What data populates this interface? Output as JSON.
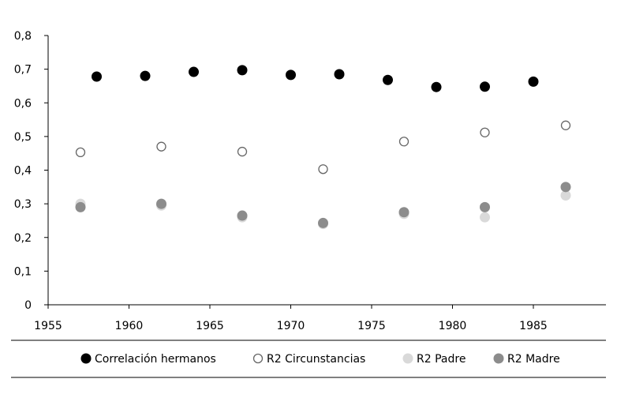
{
  "chart_data": {
    "type": "scatter",
    "title": "",
    "xlabel": "",
    "ylabel": "",
    "xlim": [
      1955,
      1990
    ],
    "ylim": [
      0,
      0.8
    ],
    "x_ticks": [
      "1955",
      "1960",
      "1965",
      "1970",
      "1975",
      "1980",
      "1985"
    ],
    "y_ticks": [
      "0",
      "0,1",
      "0,2",
      "0,3",
      "0,4",
      "0,5",
      "0,6",
      "0,7",
      "0,8"
    ],
    "grid": false,
    "legend_position": "bottom",
    "series": [
      {
        "name": "R2 Padre",
        "style": "filled",
        "color": "#d9d9d9",
        "points": [
          {
            "x": 1957,
            "y": 0.3
          },
          {
            "x": 1962,
            "y": 0.295
          },
          {
            "x": 1967,
            "y": 0.26
          },
          {
            "x": 1972,
            "y": 0.24
          },
          {
            "x": 1977,
            "y": 0.27
          },
          {
            "x": 1982,
            "y": 0.26
          },
          {
            "x": 1987,
            "y": 0.325
          }
        ]
      },
      {
        "name": "R2 Madre",
        "style": "filled",
        "color": "#8c8c8c",
        "points": [
          {
            "x": 1957,
            "y": 0.29
          },
          {
            "x": 1962,
            "y": 0.3
          },
          {
            "x": 1967,
            "y": 0.265
          },
          {
            "x": 1972,
            "y": 0.243
          },
          {
            "x": 1977,
            "y": 0.275
          },
          {
            "x": 1982,
            "y": 0.29
          },
          {
            "x": 1987,
            "y": 0.35
          }
        ]
      },
      {
        "name": "R2 Circunstancias",
        "style": "hollow",
        "color": "#666666",
        "points": [
          {
            "x": 1957,
            "y": 0.453
          },
          {
            "x": 1962,
            "y": 0.47
          },
          {
            "x": 1967,
            "y": 0.455
          },
          {
            "x": 1972,
            "y": 0.403
          },
          {
            "x": 1977,
            "y": 0.485
          },
          {
            "x": 1982,
            "y": 0.512
          },
          {
            "x": 1987,
            "y": 0.533
          }
        ]
      },
      {
        "name": "Correlación hermanos",
        "style": "filled",
        "color": "#000000",
        "points": [
          {
            "x": 1958,
            "y": 0.678
          },
          {
            "x": 1961,
            "y": 0.68
          },
          {
            "x": 1964,
            "y": 0.692
          },
          {
            "x": 1967,
            "y": 0.697
          },
          {
            "x": 1970,
            "y": 0.683
          },
          {
            "x": 1973,
            "y": 0.685
          },
          {
            "x": 1976,
            "y": 0.668
          },
          {
            "x": 1979,
            "y": 0.647
          },
          {
            "x": 1982,
            "y": 0.648
          },
          {
            "x": 1985,
            "y": 0.663
          }
        ]
      }
    ]
  },
  "legend": {
    "items": [
      {
        "label": "Correlación hermanos",
        "style": "filled",
        "color": "#000000"
      },
      {
        "label": "R2 Circunstancias",
        "style": "hollow",
        "color": "#666666"
      },
      {
        "label": "R2 Padre",
        "style": "filled",
        "color": "#d9d9d9"
      },
      {
        "label": "R2 Madre",
        "style": "filled",
        "color": "#8c8c8c"
      }
    ]
  }
}
